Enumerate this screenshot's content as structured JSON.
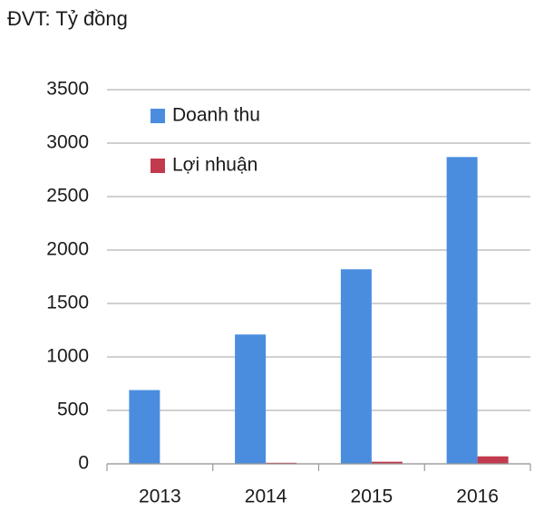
{
  "chart_data": {
    "type": "bar",
    "title": "ĐVT: Tỷ đồng",
    "categories": [
      "2013",
      "2014",
      "2015",
      "2016"
    ],
    "series": [
      {
        "name": "Doanh thu",
        "color": "#4a8ddf",
        "values": [
          690,
          1210,
          1820,
          2870
        ]
      },
      {
        "name": "Lợi nhuận",
        "color": "#c23a4e",
        "values": [
          3,
          10,
          20,
          70
        ]
      }
    ],
    "ylim": [
      0,
      3500
    ],
    "yticks": [
      0,
      500,
      1000,
      1500,
      2000,
      2500,
      3000,
      3500
    ],
    "grid": true,
    "legend": "upper-left"
  }
}
